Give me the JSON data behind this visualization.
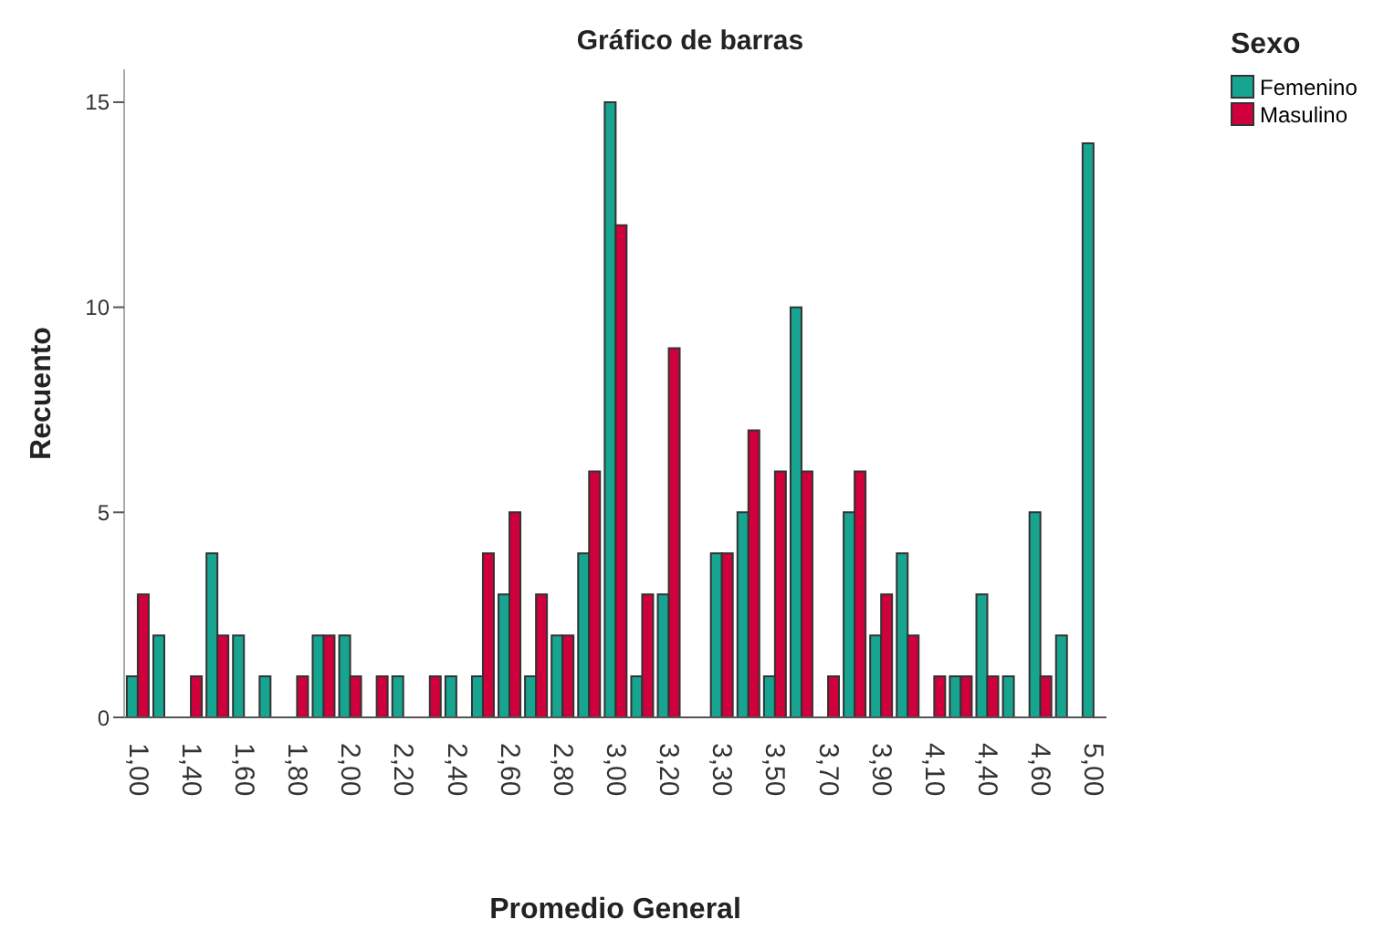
{
  "chart_data": {
    "type": "bar",
    "title": "Gráfico de barras",
    "xlabel": "Promedio General",
    "ylabel": "Recuento",
    "legend_title": "Sexo",
    "legend": "top right",
    "categories": [
      "1,00",
      null,
      "1,40",
      null,
      "1,60",
      null,
      "1,80",
      null,
      "2,00",
      null,
      "2,20",
      null,
      "2,40",
      null,
      "2,60",
      null,
      "2,80",
      null,
      "3,00",
      null,
      "3,20",
      null,
      "3,30",
      null,
      "3,50",
      null,
      "3,70",
      null,
      "3,90",
      null,
      "4,10",
      null,
      "4,40",
      null,
      "4,60",
      null,
      "5,00"
    ],
    "series": [
      {
        "name": "Femenino",
        "color": "#17a592",
        "values": [
          1,
          2,
          0,
          4,
          2,
          1,
          0,
          2,
          2,
          0,
          1,
          0,
          1,
          1,
          3,
          1,
          2,
          4,
          15,
          1,
          3,
          null,
          4,
          5,
          1,
          10,
          0,
          5,
          2,
          4,
          0,
          1,
          3,
          1,
          5,
          2,
          14
        ]
      },
      {
        "name": "Masulino",
        "color": "#d0003c",
        "values": [
          3,
          0,
          1,
          2,
          0,
          0,
          1,
          2,
          1,
          1,
          0,
          1,
          0,
          4,
          5,
          3,
          2,
          6,
          12,
          3,
          9,
          null,
          4,
          7,
          6,
          6,
          1,
          6,
          3,
          2,
          1,
          1,
          1,
          0,
          1,
          0,
          0
        ]
      }
    ],
    "ylim": [
      0,
      15.8
    ],
    "yticks": [
      0,
      5,
      10,
      15
    ]
  }
}
